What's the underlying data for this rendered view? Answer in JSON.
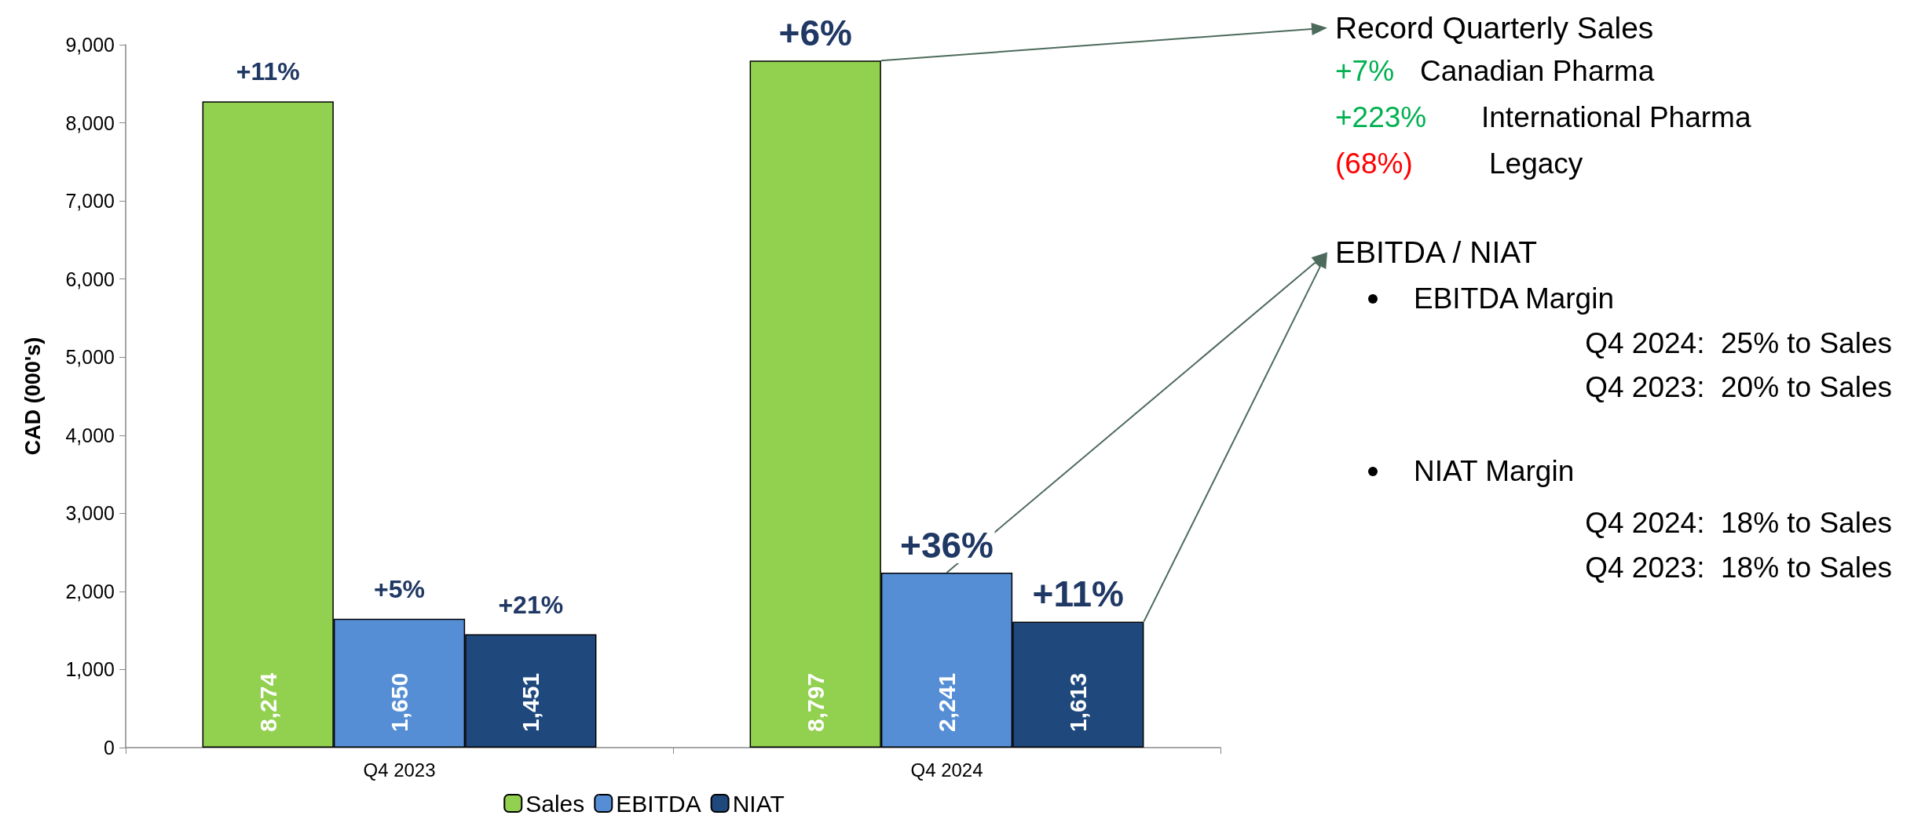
{
  "chart_data": {
    "type": "bar",
    "categories": [
      "Q4 2023",
      "Q4 2024"
    ],
    "series": [
      {
        "name": "Sales",
        "color": "#92d050",
        "values": [
          8274,
          8797
        ],
        "value_labels": [
          "8,274",
          "8,797"
        ]
      },
      {
        "name": "EBITDA",
        "color": "#558ed5",
        "values": [
          1650,
          2241
        ],
        "value_labels": [
          "1,650",
          "2,241"
        ]
      },
      {
        "name": "NIAT",
        "color": "#1f497d",
        "values": [
          1451,
          1613
        ],
        "value_labels": [
          "1,451",
          "1,613"
        ]
      }
    ],
    "ylim": [
      0,
      9000
    ],
    "yticks": [
      0,
      {
        "value": 1000,
        "label": "1,000"
      },
      {
        "value": 2000,
        "label": "2,000"
      },
      {
        "value": 3000,
        "label": "3,000"
      },
      {
        "value": 4000,
        "label": "4,000"
      },
      {
        "value": 5000,
        "label": "5,000"
      },
      {
        "value": 6000,
        "label": "6,000"
      },
      {
        "value": 7000,
        "label": "7,000"
      },
      {
        "value": 8000,
        "label": "8,000"
      },
      {
        "value": 9000,
        "label": "9,000"
      }
    ],
    "ylabel": "CAD (000's)",
    "legend": "bottom",
    "grid": false,
    "annotations": [
      "+11%",
      "+5%",
      "+21%",
      "+6%",
      "+36%",
      "+11%",
      "Record Quarterly Sales",
      "+7%",
      "Canadian Pharma",
      "+223%",
      "International Pharma",
      "(68%)",
      "Legacy",
      {
        "text": "EBITDA / NIAT",
        "x": "Q4 2024",
        "y": 2241
      },
      "EBITDA Margin",
      "Q4 2024:  25% to Sales",
      "Q4 2023:  20% to Sales",
      "NIAT Margin",
      "Q4 2024:  18% to Sales",
      "Q4 2023:  18% to Sales"
    ]
  }
}
